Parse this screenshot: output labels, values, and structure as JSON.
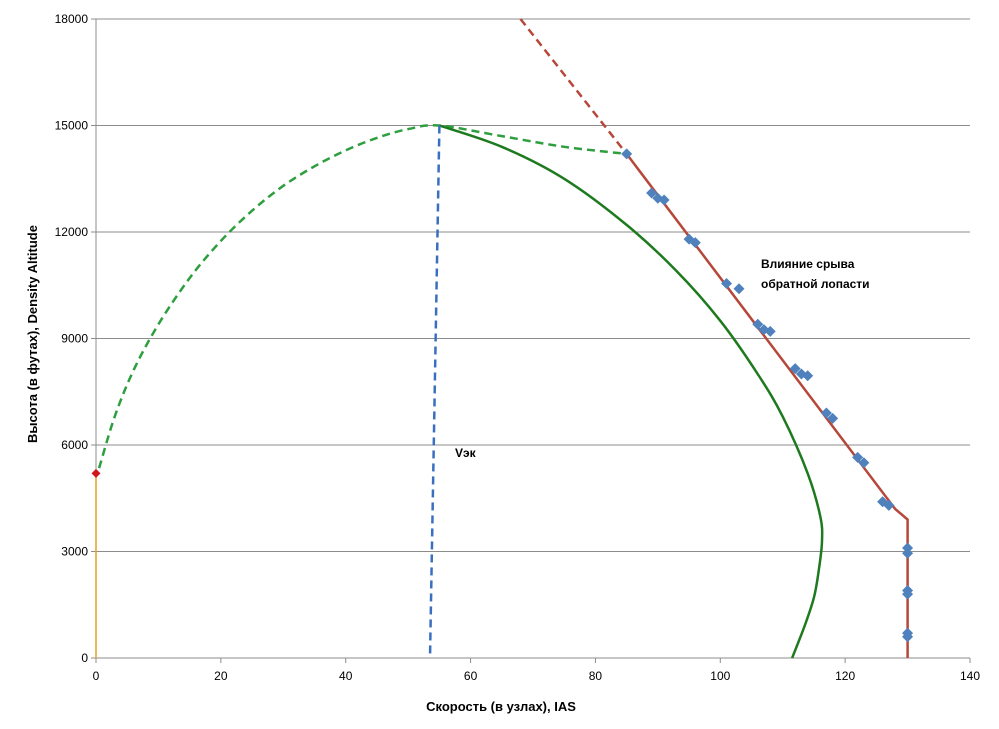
{
  "chart_data": {
    "type": "line",
    "title": "",
    "xlabel": "Скорость (в узлах), IAS",
    "ylabel": "Высота (в футах), Density Altitude",
    "xlim": [
      0,
      140
    ],
    "ylim": [
      0,
      18000
    ],
    "xticks": [
      0,
      20,
      40,
      60,
      80,
      100,
      120,
      140
    ],
    "yticks": [
      0,
      3000,
      6000,
      9000,
      12000,
      15000,
      18000
    ],
    "grid": "horizontal",
    "legend": "none",
    "annotations": [
      {
        "id": "vek",
        "text": "Vэк",
        "x": 57,
        "y": 5900
      },
      {
        "id": "stall",
        "lines": [
          "Влияние срыва",
          "обратной лопасти"
        ],
        "x": 106,
        "y": 11000
      }
    ],
    "series": [
      {
        "id": "orange-vertical",
        "style": "solid",
        "color": "#e6a020",
        "points": [
          [
            0,
            5200
          ],
          [
            0,
            0
          ]
        ]
      },
      {
        "id": "green-dashed-envelope",
        "style": "dashed",
        "color": "#2e9e3e",
        "points": [
          [
            0.5,
            5350
          ],
          [
            3,
            6800
          ],
          [
            6,
            8100
          ],
          [
            10,
            9400
          ],
          [
            15,
            10700
          ],
          [
            20,
            11750
          ],
          [
            25,
            12600
          ],
          [
            30,
            13300
          ],
          [
            35,
            13850
          ],
          [
            40,
            14300
          ],
          [
            45,
            14650
          ],
          [
            50,
            14900
          ],
          [
            55,
            15000
          ],
          [
            65,
            14700
          ],
          [
            75,
            14400
          ],
          [
            85,
            14200
          ]
        ]
      },
      {
        "id": "green-solid-curve",
        "style": "solid",
        "color": "#1e7a1e",
        "points": [
          [
            55,
            15000
          ],
          [
            65,
            14400
          ],
          [
            75,
            13500
          ],
          [
            85,
            12200
          ],
          [
            93,
            10900
          ],
          [
            100,
            9500
          ],
          [
            106,
            8000
          ],
          [
            110,
            6800
          ],
          [
            114,
            5200
          ],
          [
            116,
            4000
          ],
          [
            116.3,
            3300
          ],
          [
            115.8,
            2500
          ],
          [
            115,
            1700
          ],
          [
            113.5,
            900
          ],
          [
            111.5,
            0
          ]
        ]
      },
      {
        "id": "blue-dashed-vek",
        "style": "dashed",
        "color": "#3a6fc0",
        "points": [
          [
            55,
            15000
          ],
          [
            53.5,
            0
          ]
        ]
      },
      {
        "id": "red-dashed-extension",
        "style": "dashed",
        "color": "#b5483a",
        "points": [
          [
            68,
            18000
          ],
          [
            85,
            14200
          ]
        ]
      },
      {
        "id": "red-solid-limit",
        "style": "solid",
        "color": "#b5483a",
        "points": [
          [
            85,
            14200
          ],
          [
            128,
            4200
          ],
          [
            130,
            3900
          ],
          [
            130,
            0
          ]
        ]
      },
      {
        "id": "blue-diamond-points",
        "style": "markers",
        "color": "#4f81bd",
        "points": [
          [
            85,
            14200
          ],
          [
            89,
            13100
          ],
          [
            90,
            12950
          ],
          [
            91,
            12900
          ],
          [
            95,
            11800
          ],
          [
            96,
            11700
          ],
          [
            101,
            10550
          ],
          [
            103,
            10400
          ],
          [
            106,
            9400
          ],
          [
            107,
            9250
          ],
          [
            108,
            9200
          ],
          [
            112,
            8150
          ],
          [
            113,
            8000
          ],
          [
            114,
            7950
          ],
          [
            117,
            6900
          ],
          [
            118,
            6750
          ],
          [
            122,
            5650
          ],
          [
            123,
            5500
          ],
          [
            126,
            4400
          ],
          [
            127,
            4300
          ],
          [
            130,
            3100
          ],
          [
            130,
            2950
          ],
          [
            130,
            1900
          ],
          [
            130,
            1800
          ],
          [
            130,
            700
          ],
          [
            130,
            600
          ]
        ]
      },
      {
        "id": "red-diamond-point",
        "style": "markers",
        "color": "#cc1a1a",
        "points": [
          [
            0,
            5200
          ]
        ]
      }
    ]
  }
}
